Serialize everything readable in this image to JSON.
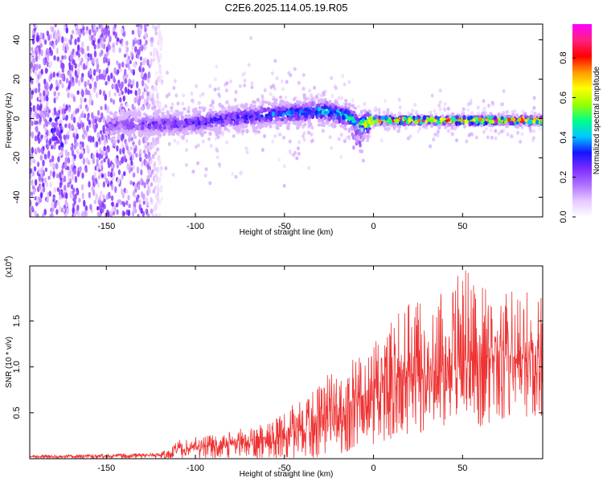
{
  "title": "C2E6.2025.114.05.19.R05",
  "colors": {
    "signal": "#ee3333",
    "background": "#ffffff",
    "spectrogram_low": "#7b2cff",
    "colormap": [
      "#ffffff",
      "#e6c8ff",
      "#b070ff",
      "#7b2cff",
      "#1515ff",
      "#00c8ff",
      "#00ff88",
      "#99ff00",
      "#ffff00",
      "#ff9900",
      "#ff0000",
      "#ff2080",
      "#ff00ff"
    ]
  },
  "chart_data": [
    {
      "type": "heatmap",
      "xlabel": "Height of straight line (km)",
      "ylabel": "Frequency (Hz)",
      "xlim": [
        -193,
        95
      ],
      "ylim": [
        -50,
        48
      ],
      "xticks": [
        -150,
        -100,
        -50,
        0,
        50
      ],
      "xtick_labels": [
        "-150",
        "-100",
        "-50",
        "0",
        "50"
      ],
      "yticks": [
        -40,
        -20,
        0,
        20,
        40
      ],
      "ytick_labels": [
        "-40",
        "-20",
        "0",
        "20",
        "40"
      ],
      "grid": false,
      "description_of_values": {
        "noise_region_x": [
          -193,
          -118
        ],
        "ridge_center_frequency": [
          [
            -120,
            -3
          ],
          [
            -100,
            -2
          ],
          [
            -80,
            0
          ],
          [
            -60,
            2
          ],
          [
            -40,
            3
          ],
          [
            -28,
            4
          ],
          [
            -15,
            1
          ],
          [
            -10,
            -2
          ],
          [
            -8,
            -4
          ],
          [
            0,
            -1
          ],
          [
            50,
            -1
          ],
          [
            95,
            -1
          ]
        ],
        "ridge_peak_amplitude": [
          [
            -140,
            0.25
          ],
          [
            -120,
            0.3
          ],
          [
            -80,
            0.35
          ],
          [
            -40,
            0.45
          ],
          [
            -10,
            0.55
          ],
          [
            0,
            0.9
          ],
          [
            50,
            0.95
          ],
          [
            95,
            0.95
          ]
        ],
        "secondary_feature": {
          "x": -178,
          "frequency": -6,
          "amplitude": 0.3
        },
        "dip_feature": {
          "x": -9,
          "frequency": -8,
          "amplitude": 0.2
        }
      }
    },
    {
      "type": "colorbar",
      "label": "Normalized spectral amplitude",
      "ylim": [
        0,
        0.97
      ],
      "ticks": [
        0.0,
        0.2,
        0.4,
        0.6,
        0.8
      ],
      "tick_labels": [
        "0.0",
        "0.2",
        "0.4",
        "0.6",
        "0.8"
      ]
    },
    {
      "type": "line",
      "xlabel": "Height of straight line (km)",
      "ylabel": "SNR (10 * v/v)",
      "y_scale_note": "(x10",
      "y_scale_exponent": "4",
      "xlim": [
        -193,
        95
      ],
      "ylim": [
        0,
        2.1
      ],
      "xticks": [
        -150,
        -100,
        -50,
        0,
        50
      ],
      "xtick_labels": [
        "-150",
        "-100",
        "-50",
        "0",
        "50"
      ],
      "yticks": [
        0.5,
        1.0,
        1.5
      ],
      "ytick_labels": [
        "0.5",
        "1.0",
        "1.5"
      ],
      "grid": false,
      "series": [
        {
          "envelope_x": [
            -193,
            -150,
            -120,
            -110,
            -100,
            -80,
            -60,
            -50,
            -40,
            -30,
            -20,
            -10,
            0,
            10,
            20,
            30,
            40,
            50,
            60,
            70,
            80,
            90,
            95
          ],
          "envelope_y_mean": [
            0.02,
            0.03,
            0.04,
            0.06,
            0.12,
            0.15,
            0.18,
            0.2,
            0.3,
            0.45,
            0.55,
            0.65,
            0.75,
            0.85,
            0.9,
            0.95,
            1.0,
            1.05,
            1.1,
            1.1,
            1.1,
            1.1,
            1.1
          ],
          "envelope_y_max": [
            0.04,
            0.05,
            0.06,
            0.2,
            0.25,
            0.3,
            0.4,
            0.5,
            0.7,
            0.9,
            1.0,
            1.1,
            1.3,
            1.5,
            1.7,
            1.9,
            1.8,
            2.1,
            1.9,
            1.8,
            1.85,
            1.8,
            1.75
          ],
          "envelope_y_min": [
            0.0,
            0.0,
            0.0,
            0.0,
            0.0,
            0.0,
            0.0,
            0.0,
            0.0,
            0.0,
            0.05,
            0.1,
            0.15,
            0.2,
            0.25,
            0.3,
            0.35,
            0.4,
            0.35,
            0.4,
            0.45,
            0.45,
            0.45
          ],
          "samples": 1500
        }
      ]
    }
  ]
}
